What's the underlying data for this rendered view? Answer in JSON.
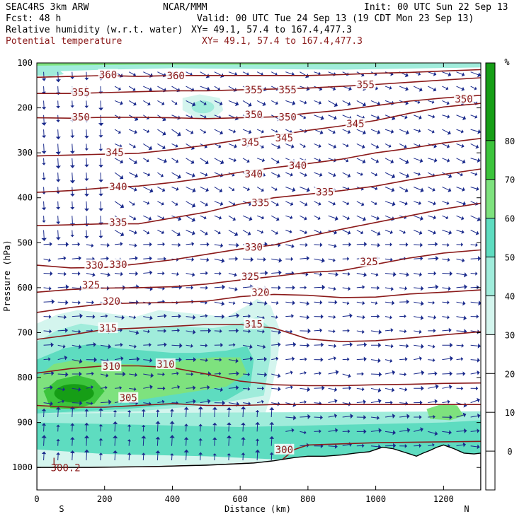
{
  "header": {
    "model": "SEAC4RS  3km ARW",
    "center": "NCAR/MMM",
    "init": "Init: 00 UTC Sun 22 Sep 13",
    "fcst": "Fcst:   48 h",
    "valid": "Valid: 00 UTC Tue 24 Sep 13 (19 CDT Mon 23 Sep 13)",
    "field1": "Relative humidity (w.r.t. water)",
    "field1_xy": "XY=  49.1, 57.4 to 167.4,477.3",
    "field2": "Potential temperature",
    "field2_xy": "XY=  49.1, 57.4 to 167.4,477.3"
  },
  "colors": {
    "theta": "#8b1a1a",
    "wind": "#1a2a8c",
    "rh_30": "#d4f5ee",
    "rh_40": "#a0ecdb",
    "rh_50": "#5edcc0",
    "rh_60": "#7ee27e",
    "rh_70": "#3cc43c",
    "rh_80": "#169e16"
  },
  "chart_data": {
    "type": "heatmap",
    "description_fields": [
      "Relative humidity (w.r.t. water)",
      "Potential temperature"
    ],
    "xlabel": "Distance (km)",
    "ylabel": "Pressure (hPa)",
    "xlim": [
      0,
      1310
    ],
    "ylim": [
      1050,
      100
    ],
    "x_ticks": [
      0,
      200,
      400,
      600,
      800,
      1000,
      1200
    ],
    "y_ticks": [
      100,
      200,
      300,
      400,
      500,
      600,
      700,
      800,
      900,
      1000
    ],
    "x_end_labels": {
      "left": "S",
      "right": "N"
    },
    "colorbar": {
      "unit": "%",
      "levels": [
        0,
        10,
        20,
        30,
        40,
        50,
        60,
        70,
        80
      ],
      "bands": [
        {
          "from": 30,
          "to": 40,
          "color": "#d4f5ee"
        },
        {
          "from": 40,
          "to": 50,
          "color": "#a0ecdb"
        },
        {
          "from": 50,
          "to": 60,
          "color": "#5edcc0"
        },
        {
          "from": 60,
          "to": 70,
          "color": "#7ee27e"
        },
        {
          "from": 70,
          "to": 80,
          "color": "#3cc43c"
        },
        {
          "from": 80,
          "to": 100,
          "color": "#169e16"
        }
      ]
    },
    "theta_contours": [
      {
        "label": "300",
        "pts": [
          [
            0,
            1000
          ],
          [
            150,
            1000
          ],
          [
            350,
            998
          ],
          [
            500,
            995
          ],
          [
            640,
            990
          ],
          [
            720,
            985
          ],
          [
            760,
            960
          ],
          [
            800,
            950
          ],
          [
            1000,
            945
          ],
          [
            1310,
            942
          ]
        ],
        "labels": [
          [
            730,
            960
          ]
        ]
      },
      {
        "label": "305",
        "pts": [
          [
            0,
            862
          ],
          [
            100,
            866
          ],
          [
            200,
            866
          ],
          [
            300,
            862
          ],
          [
            400,
            858
          ],
          [
            500,
            862
          ],
          [
            600,
            862
          ],
          [
            700,
            860
          ],
          [
            800,
            860
          ],
          [
            900,
            860
          ],
          [
            1000,
            860
          ],
          [
            1100,
            860
          ],
          [
            1200,
            860
          ],
          [
            1310,
            860
          ]
        ],
        "labels": [
          [
            270,
            845
          ]
        ]
      },
      {
        "label": "310",
        "pts": [
          [
            0,
            790
          ],
          [
            100,
            780
          ],
          [
            200,
            774
          ],
          [
            300,
            774
          ],
          [
            400,
            778
          ],
          [
            500,
            792
          ],
          [
            600,
            808
          ],
          [
            700,
            816
          ],
          [
            800,
            818
          ],
          [
            900,
            818
          ],
          [
            1000,
            816
          ],
          [
            1100,
            815
          ],
          [
            1200,
            813
          ],
          [
            1310,
            812
          ]
        ],
        "labels": [
          [
            220,
            775
          ],
          [
            380,
            770
          ]
        ]
      },
      {
        "label": "315",
        "pts": [
          [
            0,
            715
          ],
          [
            100,
            705
          ],
          [
            200,
            693
          ],
          [
            300,
            690
          ],
          [
            400,
            686
          ],
          [
            500,
            682
          ],
          [
            600,
            682
          ],
          [
            700,
            690
          ],
          [
            800,
            714
          ],
          [
            900,
            720
          ],
          [
            1000,
            718
          ],
          [
            1100,
            712
          ],
          [
            1200,
            705
          ],
          [
            1310,
            698
          ]
        ],
        "labels": [
          [
            210,
            690
          ],
          [
            640,
            681
          ]
        ]
      },
      {
        "label": "320",
        "pts": [
          [
            0,
            655
          ],
          [
            100,
            644
          ],
          [
            200,
            636
          ],
          [
            300,
            634
          ],
          [
            400,
            633
          ],
          [
            500,
            630
          ],
          [
            600,
            620
          ],
          [
            700,
            615
          ],
          [
            800,
            617
          ],
          [
            900,
            622
          ],
          [
            1000,
            621
          ],
          [
            1100,
            614
          ],
          [
            1200,
            610
          ],
          [
            1310,
            605
          ]
        ],
        "labels": [
          [
            220,
            630
          ],
          [
            660,
            610
          ]
        ]
      },
      {
        "label": "325",
        "pts": [
          [
            0,
            610
          ],
          [
            100,
            604
          ],
          [
            200,
            601
          ],
          [
            300,
            600
          ],
          [
            400,
            598
          ],
          [
            500,
            592
          ],
          [
            600,
            583
          ],
          [
            700,
            575
          ],
          [
            800,
            566
          ],
          [
            900,
            562
          ],
          [
            1000,
            548
          ],
          [
            1100,
            534
          ],
          [
            1200,
            523
          ],
          [
            1310,
            516
          ]
        ],
        "labels": [
          [
            160,
            594
          ],
          [
            630,
            575
          ],
          [
            980,
            542
          ]
        ]
      },
      {
        "label": "330",
        "pts": [
          [
            0,
            550
          ],
          [
            100,
            556
          ],
          [
            200,
            555
          ],
          [
            300,
            547
          ],
          [
            400,
            538
          ],
          [
            500,
            526
          ],
          [
            600,
            514
          ],
          [
            700,
            505
          ],
          [
            800,
            486
          ],
          [
            900,
            470
          ],
          [
            1000,
            455
          ],
          [
            1100,
            440
          ],
          [
            1200,
            425
          ],
          [
            1310,
            412
          ]
        ],
        "labels": [
          [
            170,
            550
          ],
          [
            240,
            548
          ],
          [
            640,
            510
          ]
        ]
      },
      {
        "label": "335",
        "pts": [
          [
            0,
            462
          ],
          [
            100,
            460
          ],
          [
            200,
            458
          ],
          [
            300,
            458
          ],
          [
            400,
            445
          ],
          [
            500,
            432
          ],
          [
            600,
            414
          ],
          [
            700,
            400
          ],
          [
            800,
            392
          ],
          [
            900,
            384
          ],
          [
            1000,
            374
          ],
          [
            1100,
            360
          ],
          [
            1200,
            348
          ],
          [
            1310,
            336
          ]
        ],
        "labels": [
          [
            240,
            455
          ],
          [
            660,
            411
          ],
          [
            850,
            387
          ]
        ]
      },
      {
        "label": "340",
        "pts": [
          [
            0,
            388
          ],
          [
            100,
            384
          ],
          [
            200,
            378
          ],
          [
            300,
            374
          ],
          [
            400,
            366
          ],
          [
            500,
            356
          ],
          [
            600,
            343
          ],
          [
            700,
            333
          ],
          [
            800,
            324
          ],
          [
            900,
            314
          ],
          [
            1000,
            300
          ],
          [
            1100,
            290
          ],
          [
            1200,
            278
          ],
          [
            1310,
            268
          ]
        ],
        "labels": [
          [
            240,
            375
          ],
          [
            640,
            347
          ],
          [
            770,
            328
          ]
        ]
      },
      {
        "label": "345",
        "pts": [
          [
            0,
            307
          ],
          [
            100,
            305
          ],
          [
            200,
            303
          ],
          [
            300,
            301
          ],
          [
            400,
            293
          ],
          [
            500,
            283
          ],
          [
            600,
            271
          ],
          [
            700,
            262
          ],
          [
            800,
            250
          ],
          [
            900,
            240
          ],
          [
            1000,
            228
          ],
          [
            1100,
            212
          ],
          [
            1200,
            198
          ],
          [
            1310,
            190
          ]
        ],
        "labels": [
          [
            230,
            299
          ],
          [
            630,
            276
          ],
          [
            730,
            267
          ],
          [
            940,
            235
          ]
        ]
      },
      {
        "label": "350",
        "pts": [
          [
            0,
            222
          ],
          [
            100,
            223
          ],
          [
            200,
            221
          ],
          [
            300,
            221
          ],
          [
            400,
            222
          ],
          [
            500,
            224
          ],
          [
            600,
            222
          ],
          [
            700,
            220
          ],
          [
            800,
            212
          ],
          [
            900,
            205
          ],
          [
            1000,
            195
          ],
          [
            1100,
            185
          ],
          [
            1200,
            178
          ],
          [
            1310,
            172
          ]
        ],
        "labels": [
          [
            130,
            220
          ],
          [
            640,
            215
          ],
          [
            740,
            220
          ],
          [
            1260,
            180
          ]
        ]
      },
      {
        "label": "355",
        "pts": [
          [
            0,
            168
          ],
          [
            100,
            168
          ],
          [
            200,
            166
          ],
          [
            300,
            164
          ],
          [
            400,
            162
          ],
          [
            500,
            162
          ],
          [
            600,
            160
          ],
          [
            700,
            158
          ],
          [
            800,
            156
          ],
          [
            900,
            152
          ],
          [
            1000,
            148
          ],
          [
            1100,
            143
          ],
          [
            1200,
            138
          ],
          [
            1310,
            133
          ]
        ],
        "labels": [
          [
            130,
            165
          ],
          [
            640,
            160
          ],
          [
            740,
            160
          ],
          [
            970,
            148
          ]
        ]
      },
      {
        "label": "360",
        "pts": [
          [
            0,
            132
          ],
          [
            100,
            130
          ],
          [
            200,
            128
          ],
          [
            300,
            130
          ],
          [
            400,
            128
          ],
          [
            500,
            128
          ],
          [
            600,
            128
          ],
          [
            700,
            128
          ],
          [
            800,
            128
          ],
          [
            900,
            126
          ],
          [
            1000,
            123
          ],
          [
            1100,
            121
          ],
          [
            1200,
            118
          ],
          [
            1310,
            115
          ]
        ],
        "labels": [
          [
            210,
            126
          ],
          [
            410,
            128
          ]
        ]
      }
    ],
    "annotations": [
      {
        "text": "L",
        "x": 55,
        "y": 995
      },
      {
        "text": "300.2",
        "x": 85,
        "y": 1008
      }
    ]
  }
}
